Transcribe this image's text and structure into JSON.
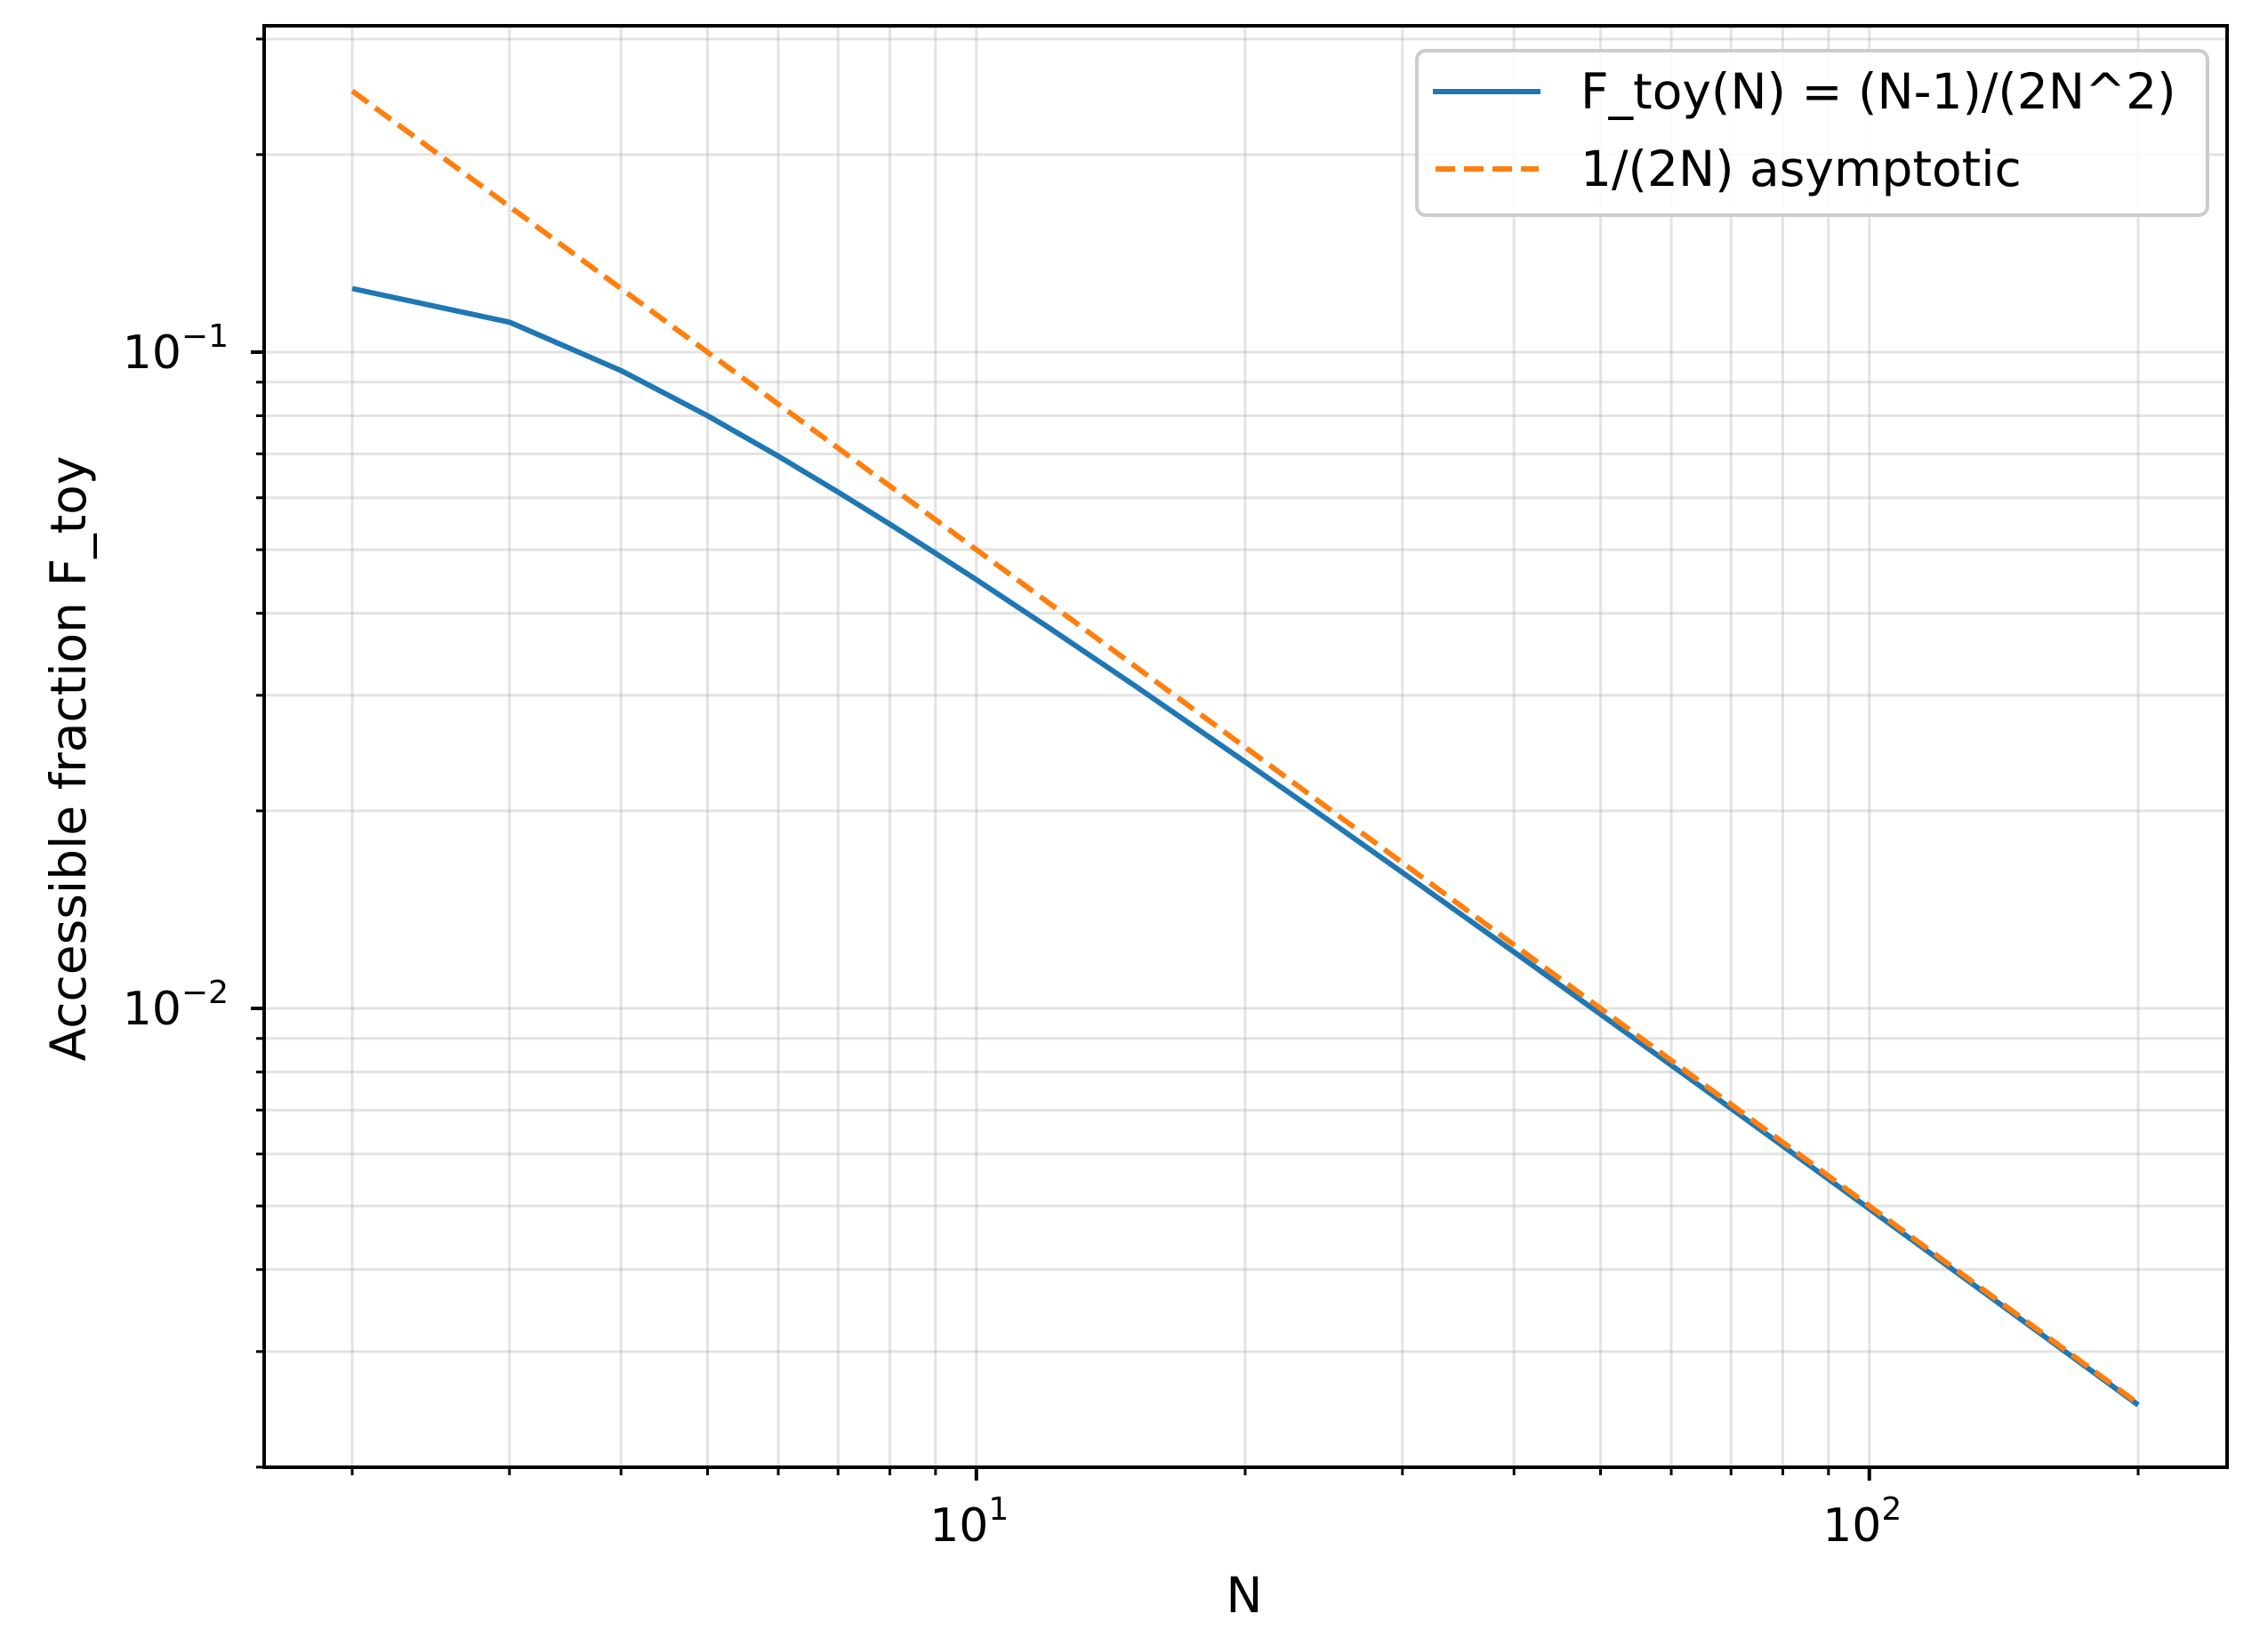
{
  "chart_data": {
    "type": "line",
    "title": "",
    "xlabel": "N",
    "ylabel": "Accessible fraction F_toy",
    "xscale": "log",
    "yscale": "log",
    "xlim": [
      1.59,
      252
    ],
    "ylim": [
      0.002,
      0.314
    ],
    "grid": {
      "major": true,
      "minor": true
    },
    "x_ticks": [
      {
        "value": 10,
        "base": "10",
        "exp": "1"
      },
      {
        "value": 100,
        "base": "10",
        "exp": "2"
      }
    ],
    "y_ticks": [
      {
        "value": 0.1,
        "base": "10",
        "exp": "−1"
      },
      {
        "value": 0.01,
        "base": "10",
        "exp": "−2"
      }
    ],
    "legend": {
      "position": "upper right"
    },
    "x": [
      2,
      3,
      4,
      5,
      6,
      7,
      8,
      9,
      10,
      12,
      15,
      20,
      25,
      30,
      40,
      50,
      60,
      70,
      80,
      90,
      100,
      120,
      150,
      200
    ],
    "series": [
      {
        "name": "F_toy(N) = (N-1)/(2N^2)",
        "color": "#1f77b4",
        "style": "solid",
        "values": [
          0.125,
          0.1111,
          0.09375,
          0.08,
          0.06944,
          0.06122,
          0.05469,
          0.04938,
          0.045,
          0.03819,
          0.03111,
          0.02375,
          0.0192,
          0.01611,
          0.01219,
          0.0098,
          0.008194,
          0.007041,
          0.006172,
          0.005494,
          0.00495,
          0.004132,
          0.003311,
          0.002488
        ]
      },
      {
        "name": "1/(2N) asymptotic",
        "color": "#ff7f0e",
        "style": "dashed",
        "values": [
          0.25,
          0.1667,
          0.125,
          0.1,
          0.08333,
          0.07143,
          0.0625,
          0.05556,
          0.05,
          0.04167,
          0.03333,
          0.025,
          0.02,
          0.01667,
          0.0125,
          0.01,
          0.008333,
          0.007143,
          0.00625,
          0.005556,
          0.005,
          0.004167,
          0.003333,
          0.0025
        ]
      }
    ]
  },
  "axes": {
    "xlabel": "N",
    "ylabel": "Accessible fraction F_toy"
  },
  "legend": {
    "items": [
      {
        "label": "F_toy(N) = (N-1)/(2N^2)"
      },
      {
        "label": "1/(2N) asymptotic"
      }
    ]
  }
}
